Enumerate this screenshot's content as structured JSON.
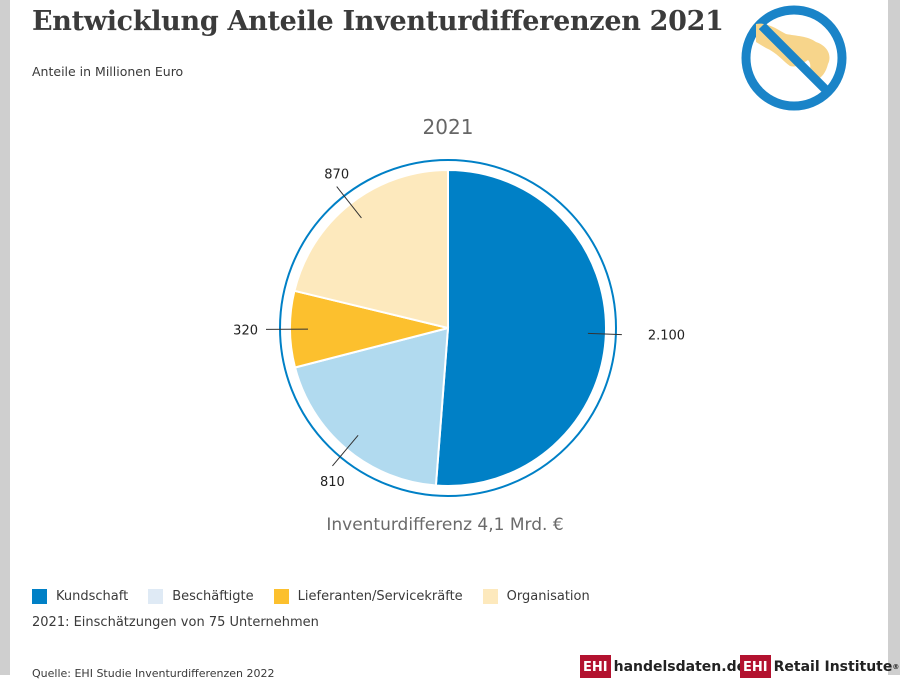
{
  "header": {
    "title": "Entwicklung Anteile Inventurdifferenzen 2021",
    "subtitle": "Anteile in Millionen Euro"
  },
  "chart_data": {
    "type": "pie",
    "title": "2021",
    "total_label": "Inventurdifferenz 4,1 Mrd. €",
    "series": [
      {
        "name": "Kundschaft",
        "value": 2100,
        "label": "2.100",
        "color": "#0080c6"
      },
      {
        "name": "Beschäftigte",
        "value": 810,
        "label": "810",
        "color": "#b1daef"
      },
      {
        "name": "Lieferanten/Servicekräfte",
        "value": 320,
        "label": "320",
        "color": "#fcc02e"
      },
      {
        "name": "Organisation",
        "value": 870,
        "label": "870",
        "color": "#fde9bd"
      }
    ],
    "legend_position": "bottom-left"
  },
  "legend_colors": {
    "Kundschaft": "#0080c6",
    "Beschäftigte": "#dfeaf5",
    "Lieferanten/Servicekräfte": "#fcc02e",
    "Organisation": "#fde9bd"
  },
  "footer": {
    "note": "2021: Einschätzungen von 75 Unternehmen",
    "source": "Quelle: EHI Studie Inventurdifferenzen 2022",
    "brand1_mark": "EHI",
    "brand1_text": "handelsdaten.de",
    "brand2_mark": "EHI",
    "brand2_text": "Retail Institute",
    "brand2_reg": "®"
  },
  "badge": {
    "icon": "no-theft-hand-icon",
    "ring_color": "#1a84c8",
    "hand_color": "#f7d58b"
  }
}
